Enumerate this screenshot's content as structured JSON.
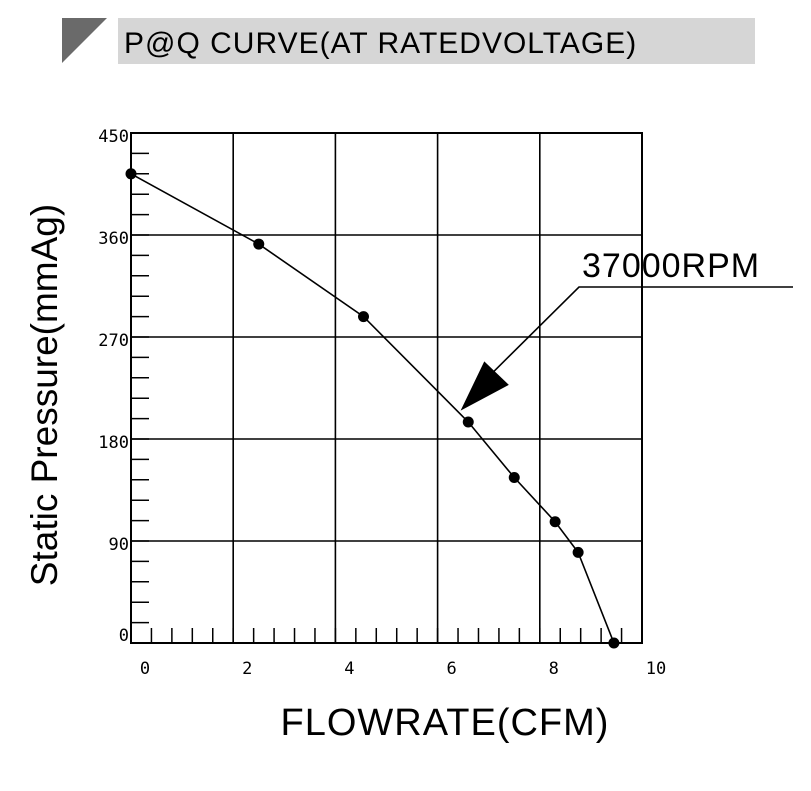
{
  "header": {
    "title": "P@Q CURVE(AT RATEDVOLTAGE)",
    "band_color": "#d6d6d6",
    "triangle_color": "#6a6a6a"
  },
  "chart_data": {
    "type": "line",
    "title": "P@Q CURVE(AT RATEDVOLTAGE)",
    "xlabel": "FLOWRATE(CFM)",
    "ylabel": "Static Pressure(mmAg)",
    "xlim": [
      0,
      10
    ],
    "ylim": [
      0,
      450
    ],
    "x_ticks": [
      0,
      2,
      4,
      6,
      8,
      10
    ],
    "y_ticks": [
      0,
      90,
      180,
      270,
      360,
      450
    ],
    "x_tick_labels": [
      "0",
      "2",
      "4",
      "6",
      "8",
      "10"
    ],
    "y_tick_labels": [
      "0",
      "90",
      "180",
      "270",
      "360",
      "450"
    ],
    "grid": true,
    "series": [
      {
        "name": "37000RPM",
        "color": "#000000",
        "points": [
          {
            "x": 0.0,
            "y": 414
          },
          {
            "x": 2.5,
            "y": 352
          },
          {
            "x": 4.55,
            "y": 288
          },
          {
            "x": 6.6,
            "y": 195
          },
          {
            "x": 7.5,
            "y": 146
          },
          {
            "x": 8.3,
            "y": 107
          },
          {
            "x": 8.75,
            "y": 80
          },
          {
            "x": 9.45,
            "y": 0
          }
        ]
      }
    ],
    "annotation": {
      "text": "37000RPM",
      "arrow_to": {
        "x": 6.45,
        "y": 205
      }
    }
  }
}
